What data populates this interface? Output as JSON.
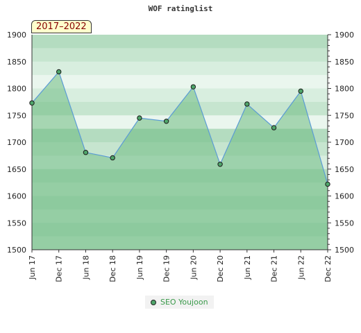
{
  "chart_data": {
    "type": "line",
    "title": "WOF ratinglist",
    "badge": "2017–2022",
    "categories": [
      "Jun 17",
      "Dec 17",
      "Jun 18",
      "Dec 18",
      "Jun 19",
      "Dec 19",
      "Jun 20",
      "Dec 20",
      "Jun 21",
      "Dec 21",
      "Jun 22",
      "Dec 22"
    ],
    "series": [
      {
        "name": "SEO Youjoon",
        "values": [
          1773,
          1831,
          1681,
          1671,
          1745,
          1739,
          1803,
          1659,
          1771,
          1727,
          1795,
          1622
        ]
      }
    ],
    "ylim": [
      1500,
      1900
    ],
    "yticks": [
      1500,
      1550,
      1600,
      1650,
      1700,
      1750,
      1800,
      1850,
      1900
    ],
    "legend_position": "bottom-center",
    "colors": {
      "line": "#5b9bd5",
      "fill": "#6dbb82",
      "marker": "#4fa56a"
    }
  }
}
